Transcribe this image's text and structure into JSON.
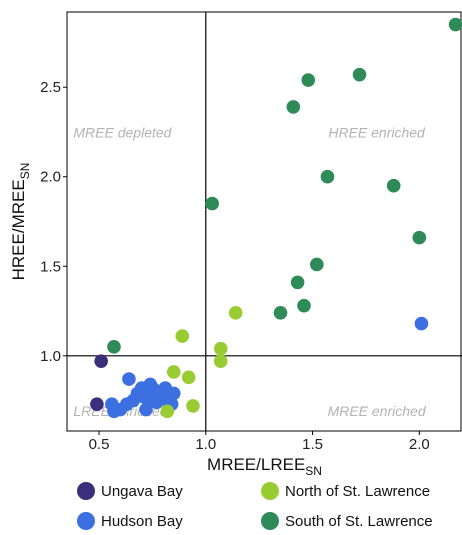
{
  "chart_data": {
    "type": "scatter",
    "xlabel": "MREE/LREE",
    "xlabel_sub": "SN",
    "ylabel": "HREE/MREE",
    "ylabel_sub": "SN",
    "xlim": [
      0.35,
      2.2
    ],
    "ylim": [
      0.58,
      2.92
    ],
    "xticks": [
      {
        "value": 0.5,
        "label": "0.5"
      },
      {
        "value": 1.0,
        "label": "1.0"
      },
      {
        "value": 1.5,
        "label": "1.5"
      },
      {
        "value": 2.0,
        "label": "2.0"
      }
    ],
    "yticks": [
      {
        "value": 1.0,
        "label": "1.0"
      },
      {
        "value": 1.5,
        "label": "1.5"
      },
      {
        "value": 2.0,
        "label": "2.0"
      },
      {
        "value": 2.5,
        "label": "2.5"
      }
    ],
    "reference_lines": {
      "x": 1.0,
      "y": 1.0
    },
    "annotations": [
      {
        "text": "MREE depleted",
        "x": 0.38,
        "y": 2.22,
        "anchor": "start"
      },
      {
        "text": "HREE enriched",
        "x": 1.8,
        "y": 2.22,
        "anchor": "middle"
      },
      {
        "text": "LREE enriched",
        "x": 0.38,
        "y": 0.665,
        "anchor": "start"
      },
      {
        "text": "MREE enriched",
        "x": 1.8,
        "y": 0.665,
        "anchor": "middle"
      }
    ],
    "grid": false,
    "legend_position": "bottom",
    "series": [
      {
        "name": "Ungava Bay",
        "color": "#3b2f7c",
        "points": [
          [
            0.51,
            0.97
          ],
          [
            0.49,
            0.73
          ]
        ]
      },
      {
        "name": "Hudson Bay",
        "color": "#3c6fe0",
        "points": [
          [
            0.56,
            0.73
          ],
          [
            0.57,
            0.69
          ],
          [
            0.6,
            0.7
          ],
          [
            0.63,
            0.73
          ],
          [
            0.64,
            0.87
          ],
          [
            0.66,
            0.75
          ],
          [
            0.68,
            0.79
          ],
          [
            0.7,
            0.82
          ],
          [
            0.71,
            0.77
          ],
          [
            0.72,
            0.7
          ],
          [
            0.72,
            0.81
          ],
          [
            0.73,
            0.79
          ],
          [
            0.74,
            0.84
          ],
          [
            0.75,
            0.82
          ],
          [
            0.75,
            0.76
          ],
          [
            0.76,
            0.78
          ],
          [
            0.77,
            0.74
          ],
          [
            0.78,
            0.8
          ],
          [
            0.8,
            0.76
          ],
          [
            0.81,
            0.82
          ],
          [
            0.83,
            0.77
          ],
          [
            0.84,
            0.73
          ],
          [
            0.85,
            0.79
          ],
          [
            2.01,
            1.18
          ]
        ]
      },
      {
        "name": "North of St. Lawrence",
        "color": "#99cc33",
        "points": [
          [
            0.82,
            0.69
          ],
          [
            0.85,
            0.91
          ],
          [
            0.89,
            1.11
          ],
          [
            0.92,
            0.88
          ],
          [
            0.94,
            0.72
          ],
          [
            1.07,
            1.04
          ],
          [
            1.07,
            0.97
          ],
          [
            1.14,
            1.24
          ]
        ]
      },
      {
        "name": "South of St. Lawrence",
        "color": "#2e8b57",
        "points": [
          [
            0.57,
            1.05
          ],
          [
            1.03,
            1.85
          ],
          [
            1.35,
            1.24
          ],
          [
            1.41,
            2.39
          ],
          [
            1.43,
            1.41
          ],
          [
            1.46,
            1.28
          ],
          [
            1.48,
            2.54
          ],
          [
            1.52,
            1.51
          ],
          [
            1.57,
            2.0
          ],
          [
            1.72,
            2.57
          ],
          [
            1.88,
            1.95
          ],
          [
            2.0,
            1.66
          ],
          [
            2.17,
            2.85
          ]
        ]
      }
    ]
  }
}
